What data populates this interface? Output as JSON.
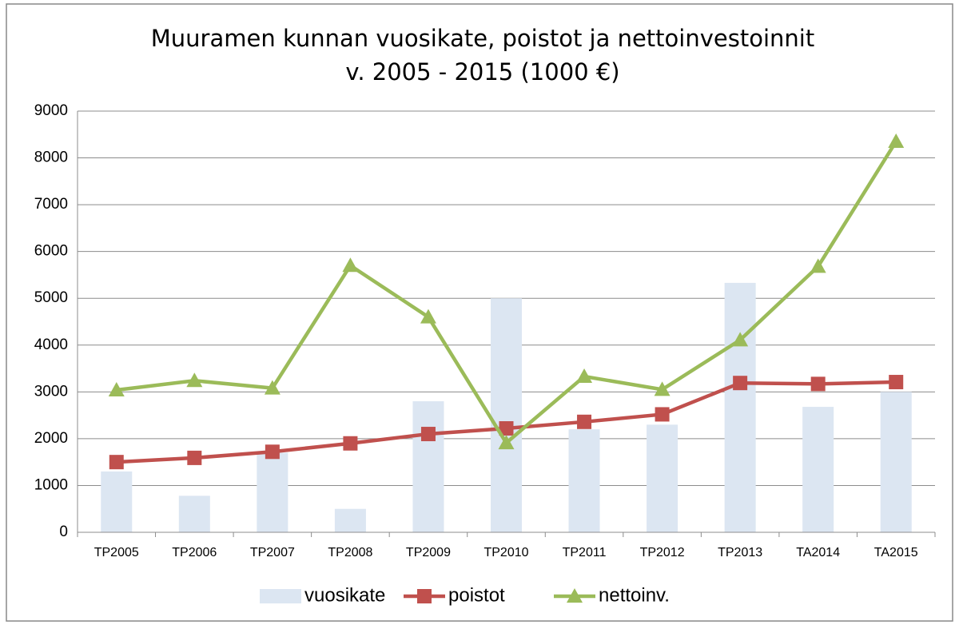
{
  "chart_data": {
    "type": "combo",
    "title": [
      "Muuramen kunnan vuosikate, poistot ja nettoinvestoinnit",
      "v. 2005 - 2015 (1000 €)"
    ],
    "categories": [
      "TP2005",
      "TP2006",
      "TP2007",
      "TP2008",
      "TP2009",
      "TP2010",
      "TP2011",
      "TP2012",
      "TP2013",
      "TA2014",
      "TA2015"
    ],
    "series": [
      {
        "name": "vuosikate",
        "type": "bar",
        "color": "#dce6f2",
        "values": [
          1300,
          780,
          1700,
          500,
          2800,
          5000,
          2200,
          2300,
          5330,
          2680,
          3000
        ]
      },
      {
        "name": "poistot",
        "type": "line",
        "marker": "square",
        "color": "#c0504d",
        "values": [
          1500,
          1590,
          1720,
          1900,
          2100,
          2220,
          2360,
          2520,
          3190,
          3170,
          3210
        ]
      },
      {
        "name": "nettoinv.",
        "type": "line",
        "marker": "triangle",
        "color": "#9bbb59",
        "values": [
          3040,
          3240,
          3080,
          5700,
          4600,
          1910,
          3330,
          3050,
          4110,
          5680,
          8350
        ]
      }
    ],
    "ylim": [
      0,
      9000
    ],
    "yticks": [
      0,
      1000,
      2000,
      3000,
      4000,
      5000,
      6000,
      7000,
      8000,
      9000
    ],
    "grid": true,
    "legend": "bottom"
  }
}
